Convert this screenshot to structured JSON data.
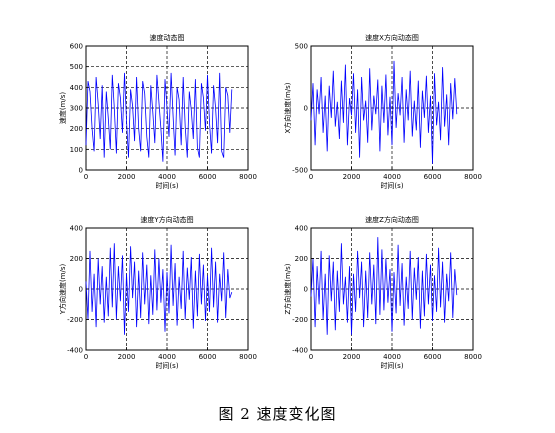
{
  "caption": "图 2 速度变化图",
  "chart_data": [
    {
      "type": "line",
      "title": "速度动态图",
      "xlabel": "时间(s)",
      "ylabel": "速度(m/s)",
      "xlim": [
        0,
        8000
      ],
      "ylim": [
        0,
        600
      ],
      "x_ticks": [
        "0",
        "2000",
        "4000",
        "6000",
        "8000"
      ],
      "y_ticks": [
        "0",
        "100",
        "200",
        "300",
        "400",
        "500",
        "600"
      ],
      "grid": "dashed",
      "color": "#0000ff",
      "series": [
        {
          "x": [
            0,
            100,
            200,
            300,
            400,
            500,
            600,
            700,
            800,
            900,
            1000,
            1100,
            1200,
            1300,
            1400,
            1500,
            1600,
            1700,
            1800,
            1900,
            2000,
            2100,
            2200,
            2300,
            2400,
            2500,
            2600,
            2700,
            2800,
            2900,
            3000,
            3100,
            3200,
            3300,
            3400,
            3500,
            3600,
            3700,
            3800,
            3900,
            4000,
            4100,
            4200,
            4300,
            4400,
            4500,
            4600,
            4700,
            4800,
            4900,
            5000,
            5100,
            5200,
            5300,
            5400,
            5500,
            5600,
            5700,
            5800,
            5900,
            6000,
            6100,
            6200,
            6300,
            6400,
            6500,
            6600,
            6700,
            6800,
            6900,
            7000,
            7100,
            7200
          ],
          "values": [
            120,
            430,
            380,
            200,
            90,
            450,
            320,
            150,
            410,
            60,
            380,
            250,
            100,
            460,
            300,
            80,
            420,
            350,
            180,
            470,
            240,
            60,
            390,
            310,
            140,
            450,
            200,
            90,
            430,
            370,
            160,
            60,
            410,
            280,
            130,
            460,
            330,
            200,
            40,
            440,
            300,
            160,
            470,
            260,
            70,
            400,
            340,
            120,
            450,
            210,
            60,
            380,
            290,
            150,
            440,
            110,
            60,
            420,
            350,
            190,
            460,
            230,
            80,
            410,
            300,
            130,
            470,
            90,
            60,
            400,
            360,
            180,
            390
          ]
        }
      ]
    },
    {
      "type": "line",
      "title": "速度X方向动态图",
      "xlabel": "时间(s)",
      "ylabel": "X方向速度(m/s)",
      "xlim": [
        0,
        8000
      ],
      "ylim": [
        -500,
        500
      ],
      "x_ticks": [
        "0",
        "2000",
        "4000",
        "6000",
        "8000"
      ],
      "y_ticks": [
        "-500",
        "0",
        "500"
      ],
      "grid": "dashed",
      "color": "#0000ff",
      "series": [
        {
          "x": [
            0,
            100,
            200,
            300,
            400,
            500,
            600,
            700,
            800,
            900,
            1000,
            1100,
            1200,
            1300,
            1400,
            1500,
            1600,
            1700,
            1800,
            1900,
            2000,
            2100,
            2200,
            2300,
            2400,
            2500,
            2600,
            2700,
            2800,
            2900,
            3000,
            3100,
            3200,
            3300,
            3400,
            3500,
            3600,
            3700,
            3800,
            3900,
            4000,
            4100,
            4200,
            4300,
            4400,
            4500,
            4600,
            4700,
            4800,
            4900,
            5000,
            5100,
            5200,
            5300,
            5400,
            5500,
            5600,
            5700,
            5800,
            5900,
            6000,
            6100,
            6200,
            6300,
            6400,
            6500,
            6600,
            6700,
            6800,
            6900,
            7000,
            7100,
            7200
          ],
          "values": [
            -100,
            200,
            -300,
            150,
            -50,
            250,
            -200,
            100,
            -350,
            180,
            -80,
            300,
            -150,
            50,
            -250,
            220,
            -120,
            350,
            -300,
            80,
            -60,
            280,
            -200,
            150,
            -400,
            250,
            -100,
            60,
            -280,
            320,
            -180,
            100,
            -50,
            230,
            -350,
            180,
            -120,
            270,
            -220,
            90,
            -300,
            380,
            -160,
            120,
            -60,
            250,
            -280,
            150,
            -100,
            300,
            -230,
            60,
            -180,
            220,
            -320,
            140,
            -80,
            260,
            -200,
            100,
            -450,
            280,
            -140,
            50,
            -260,
            330,
            -150,
            110,
            -300,
            200,
            -90,
            240,
            -50
          ]
        }
      ]
    },
    {
      "type": "line",
      "title": "速度Y方向动态图",
      "xlabel": "时间(s)",
      "ylabel": "Y方向速度(m/s)",
      "xlim": [
        0,
        8000
      ],
      "ylim": [
        -400,
        400
      ],
      "x_ticks": [
        "0",
        "2000",
        "4000",
        "6000",
        "8000"
      ],
      "y_ticks": [
        "-400",
        "-200",
        "0",
        "200",
        "400"
      ],
      "grid": "dashed",
      "color": "#0000ff",
      "series": [
        {
          "x": [
            0,
            100,
            200,
            300,
            400,
            500,
            600,
            700,
            800,
            900,
            1000,
            1100,
            1200,
            1300,
            1400,
            1500,
            1600,
            1700,
            1800,
            1900,
            2000,
            2100,
            2200,
            2300,
            2400,
            2500,
            2600,
            2700,
            2800,
            2900,
            3000,
            3100,
            3200,
            3300,
            3400,
            3500,
            3600,
            3700,
            3800,
            3900,
            4000,
            4100,
            4200,
            4300,
            4400,
            4500,
            4600,
            4700,
            4800,
            4900,
            5000,
            5100,
            5200,
            5300,
            5400,
            5500,
            5600,
            5700,
            5800,
            5900,
            6000,
            6100,
            6200,
            6300,
            6400,
            6500,
            6600,
            6700,
            6800,
            6900,
            7000,
            7100,
            7200
          ],
          "values": [
            50,
            -200,
            250,
            -150,
            100,
            -250,
            200,
            -100,
            150,
            -220,
            80,
            -180,
            270,
            -120,
            300,
            -200,
            150,
            -80,
            220,
            -300,
            100,
            -150,
            280,
            -60,
            180,
            -250,
            120,
            -190,
            240,
            -100,
            160,
            -230,
            90,
            -170,
            260,
            -140,
            200,
            -90,
            130,
            -280,
            110,
            -160,
            290,
            -110,
            170,
            -240,
            80,
            -130,
            250,
            -200,
            140,
            -70,
            210,
            -260,
            120,
            -180,
            230,
            -100,
            160,
            -210,
            90,
            -150,
            270,
            -120,
            180,
            -220,
            100,
            -80,
            240,
            -190,
            130,
            -60,
            -20
          ]
        }
      ]
    },
    {
      "type": "line",
      "title": "速度Z方向动态图",
      "xlabel": "时间(s)",
      "ylabel": "Z方向速度(m/s)",
      "xlim": [
        0,
        8000
      ],
      "ylim": [
        -400,
        400
      ],
      "x_ticks": [
        "0",
        "2000",
        "4000",
        "6000",
        "8000"
      ],
      "y_ticks": [
        "-400",
        "-200",
        "0",
        "200",
        "400"
      ],
      "grid": "dashed",
      "color": "#0000ff",
      "series": [
        {
          "x": [
            0,
            100,
            200,
            300,
            400,
            500,
            600,
            700,
            800,
            900,
            1000,
            1100,
            1200,
            1300,
            1400,
            1500,
            1600,
            1700,
            1800,
            1900,
            2000,
            2100,
            2200,
            2300,
            2400,
            2500,
            2600,
            2700,
            2800,
            2900,
            3000,
            3100,
            3200,
            3300,
            3400,
            3500,
            3600,
            3700,
            3800,
            3900,
            4000,
            4100,
            4200,
            4300,
            4400,
            4500,
            4600,
            4700,
            4800,
            4900,
            5000,
            5100,
            5200,
            5300,
            5400,
            5500,
            5600,
            5700,
            5800,
            5900,
            6000,
            6100,
            6200,
            6300,
            6400,
            6500,
            6600,
            6700,
            6800,
            6900,
            7000,
            7100,
            7200
          ],
          "values": [
            -50,
            200,
            -250,
            150,
            -100,
            250,
            -200,
            100,
            -300,
            220,
            -80,
            180,
            -270,
            120,
            -150,
            300,
            -100,
            80,
            -220,
            150,
            -300,
            100,
            -150,
            250,
            -60,
            180,
            -250,
            120,
            -190,
            240,
            -100,
            160,
            -230,
            340,
            -170,
            260,
            -140,
            200,
            -90,
            130,
            -280,
            110,
            -160,
            290,
            -110,
            170,
            -240,
            80,
            -130,
            250,
            -200,
            140,
            -70,
            210,
            -260,
            120,
            -180,
            230,
            -100,
            160,
            -210,
            90,
            -150,
            270,
            -120,
            180,
            -220,
            100,
            -80,
            240,
            -190,
            130,
            -40
          ]
        }
      ]
    }
  ]
}
